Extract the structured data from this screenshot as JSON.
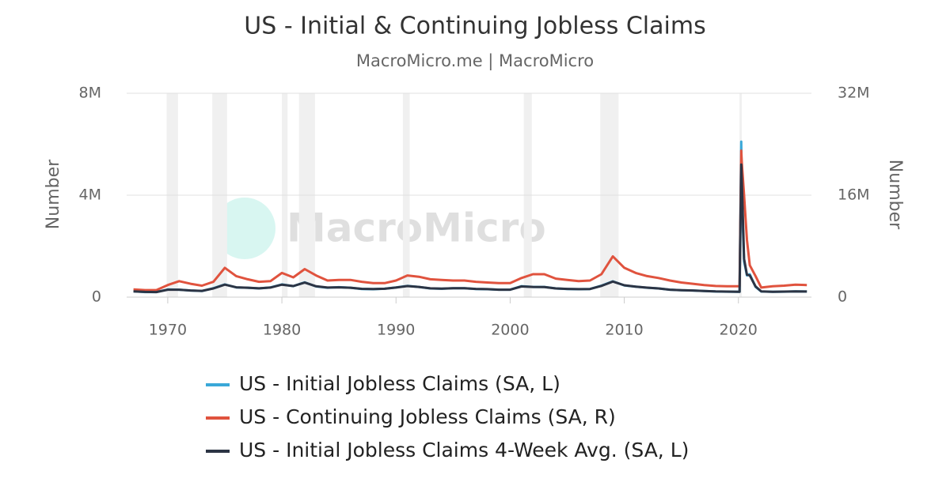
{
  "chart_data": {
    "type": "line",
    "title": "US - Initial & Continuing Jobless Claims",
    "subtitle": "MacroMicro.me | MacroMicro",
    "watermark": "MacroMicro",
    "y_label": "Number",
    "y2_label": "Number",
    "xlim": [
      1966.4,
      2026.4
    ],
    "xticks": [
      1970,
      1980,
      1990,
      2000,
      2010,
      2020
    ],
    "ylim": [
      0,
      8000000
    ],
    "yticks": [
      0,
      {
        "value": 4000000,
        "label": "4M"
      },
      {
        "value": 8000000,
        "label": "8M"
      }
    ],
    "y2lim": [
      0,
      32000000
    ],
    "y2ticks": [
      0,
      {
        "value": 16000000,
        "label": "16M"
      },
      {
        "value": 32000000,
        "label": "32M"
      }
    ],
    "grid": true,
    "legend": "bottom",
    "recessions": [
      [
        1969.9,
        1970.9
      ],
      [
        1973.9,
        1975.2
      ],
      [
        1980.0,
        1980.5
      ],
      [
        1981.5,
        1982.9
      ],
      [
        1990.6,
        1991.2
      ],
      [
        2001.2,
        2001.9
      ],
      [
        2007.9,
        2009.5
      ],
      [
        2020.1,
        2020.3
      ]
    ],
    "x": [
      1967,
      1968,
      1969,
      1970,
      1971,
      1972,
      1973,
      1974,
      1975,
      1976,
      1977,
      1978,
      1979,
      1980,
      1981,
      1982,
      1983,
      1984,
      1985,
      1986,
      1987,
      1988,
      1989,
      1990,
      1991,
      1992,
      1993,
      1994,
      1995,
      1996,
      1997,
      1998,
      1999,
      2000,
      2001,
      2002,
      2003,
      2004,
      2005,
      2006,
      2007,
      2008,
      2009,
      2010,
      2011,
      2012,
      2013,
      2014,
      2015,
      2016,
      2017,
      2018,
      2019,
      2020.1,
      2020.25,
      2020.3,
      2020.5,
      2020.75,
      2021,
      2021.5,
      2022,
      2023,
      2024,
      2025,
      2026
    ],
    "series": [
      {
        "name": "US - Initial Jobless Claims (SA, L)",
        "color": "#3aa8d8",
        "values": [
          230000,
          200000,
          200000,
          300000,
          290000,
          260000,
          240000,
          350000,
          500000,
          380000,
          370000,
          340000,
          380000,
          500000,
          430000,
          580000,
          420000,
          370000,
          390000,
          370000,
          320000,
          310000,
          330000,
          380000,
          440000,
          400000,
          340000,
          330000,
          350000,
          350000,
          320000,
          310000,
          290000,
          290000,
          430000,
          400000,
          400000,
          340000,
          320000,
          310000,
          320000,
          450000,
          620000,
          460000,
          410000,
          370000,
          340000,
          290000,
          270000,
          260000,
          240000,
          220000,
          215000,
          210000,
          6100000,
          3800000,
          1400000,
          850000,
          900000,
          400000,
          220000,
          210000,
          215000,
          225000,
          220000
        ]
      },
      {
        "name": "US - Continuing Jobless Claims (SA, R)",
        "color": "#e0533e",
        "axis": "y2",
        "values": [
          1200000,
          1100000,
          1100000,
          1900000,
          2500000,
          2100000,
          1800000,
          2400000,
          4600000,
          3300000,
          2800000,
          2400000,
          2500000,
          3800000,
          3100000,
          4400000,
          3400000,
          2600000,
          2700000,
          2700000,
          2400000,
          2200000,
          2200000,
          2600000,
          3400000,
          3200000,
          2800000,
          2700000,
          2600000,
          2600000,
          2400000,
          2300000,
          2200000,
          2200000,
          3000000,
          3600000,
          3600000,
          2900000,
          2700000,
          2500000,
          2600000,
          3600000,
          6400000,
          4600000,
          3800000,
          3300000,
          3000000,
          2600000,
          2300000,
          2100000,
          1900000,
          1750000,
          1700000,
          1700000,
          23000000,
          21000000,
          16000000,
          9000000,
          5000000,
          3300000,
          1500000,
          1700000,
          1800000,
          1950000,
          1900000
        ]
      },
      {
        "name": "US - Initial Jobless Claims 4-Week Avg. (SA, L)",
        "color": "#2c3444",
        "values": [
          225000,
          205000,
          200000,
          290000,
          290000,
          260000,
          245000,
          340000,
          490000,
          385000,
          370000,
          345000,
          375000,
          490000,
          435000,
          570000,
          425000,
          375000,
          385000,
          370000,
          325000,
          315000,
          330000,
          375000,
          435000,
          400000,
          345000,
          335000,
          350000,
          350000,
          322000,
          312000,
          292000,
          292000,
          420000,
          400000,
          398000,
          342000,
          322000,
          312000,
          320000,
          440000,
          610000,
          465000,
          412000,
          372000,
          342000,
          292000,
          272000,
          262000,
          242000,
          222000,
          217000,
          212000,
          5200000,
          4500000,
          1500000,
          880000,
          850000,
          420000,
          225000,
          212000,
          216000,
          226000,
          221000
        ]
      }
    ]
  }
}
